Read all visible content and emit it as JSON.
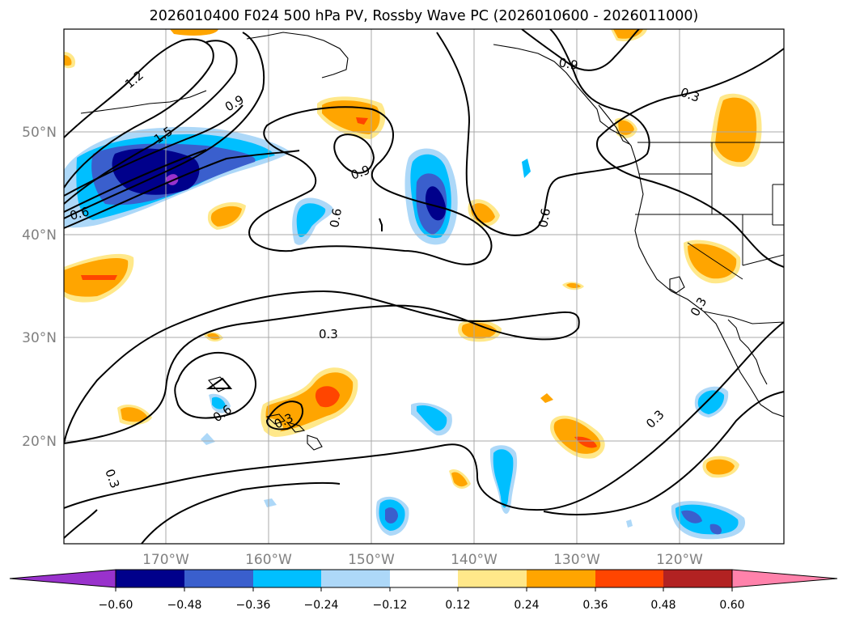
{
  "figure": {
    "title": "2026010400 F024 500 hPa PV, Rossby Wave PC (2026010600 - 2026011000)"
  },
  "map": {
    "latitude_labels": [
      "50°N",
      "40°N",
      "30°N",
      "20°N"
    ],
    "longitude_labels": [
      "170°W",
      "160°W",
      "150°W",
      "140°W",
      "130°W",
      "120°W"
    ],
    "contour_labels": [
      "1.2",
      "1.5",
      "0.9",
      "0.6",
      "0.9",
      "0.6",
      "0.6",
      "0.9",
      "0.3",
      "0.3",
      "0.3",
      "0.6",
      "0.3",
      "0.3",
      "0.3"
    ]
  },
  "colorbar": {
    "ticks": [
      "−0.60",
      "−0.48",
      "−0.36",
      "−0.24",
      "−0.12",
      "0.12",
      "0.24",
      "0.36",
      "0.48",
      "0.60"
    ],
    "colors": [
      "#9932cc",
      "#00008b",
      "#3a5fcd",
      "#00bfff",
      "#add8f8",
      "#ffffff",
      "#ffe88a",
      "#ffa500",
      "#ff4500",
      "#b22222",
      "#ff82ab"
    ]
  }
}
